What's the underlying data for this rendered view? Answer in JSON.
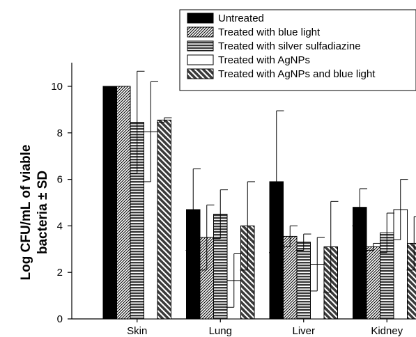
{
  "chart_data": {
    "type": "bar",
    "title": "",
    "xlabel": "",
    "ylabel_line1": "Log CFU/mL of viable",
    "ylabel_line2": "bacteria ± SD",
    "ylim": [
      0,
      11
    ],
    "yticks": [
      0,
      2,
      4,
      6,
      8,
      10
    ],
    "categories": [
      "Skin",
      "Lung",
      "Liver",
      "Kidney"
    ],
    "legend_position": "top-right",
    "grid": false,
    "series": [
      {
        "name": "Untreated",
        "pattern": "solid",
        "values": [
          10.0,
          4.7,
          5.9,
          4.8
        ],
        "sd": [
          0,
          1.75,
          3.05,
          0.8
        ]
      },
      {
        "name": "Treated with blue light",
        "pattern": "diag-right",
        "values": [
          10.0,
          3.5,
          3.55,
          3.1
        ],
        "sd": [
          0,
          1.4,
          0.45,
          0.15
        ]
      },
      {
        "name": "Treated with silver sulfadiazine",
        "pattern": "horizontal",
        "values": [
          8.45,
          4.5,
          3.3,
          3.7
        ],
        "sd": [
          2.2,
          1.05,
          0.35,
          0.85
        ]
      },
      {
        "name": "Treated with AgNPs",
        "pattern": "white",
        "values": [
          8.05,
          1.65,
          2.35,
          4.7
        ],
        "sd": [
          2.15,
          1.15,
          1.15,
          1.3
        ]
      },
      {
        "name": "Treated with AgNPs and blue light",
        "pattern": "diag-left",
        "values": [
          8.55,
          4.0,
          3.1,
          3.25
        ],
        "sd": [
          0.1,
          1.9,
          1.95,
          1.15
        ]
      }
    ]
  }
}
